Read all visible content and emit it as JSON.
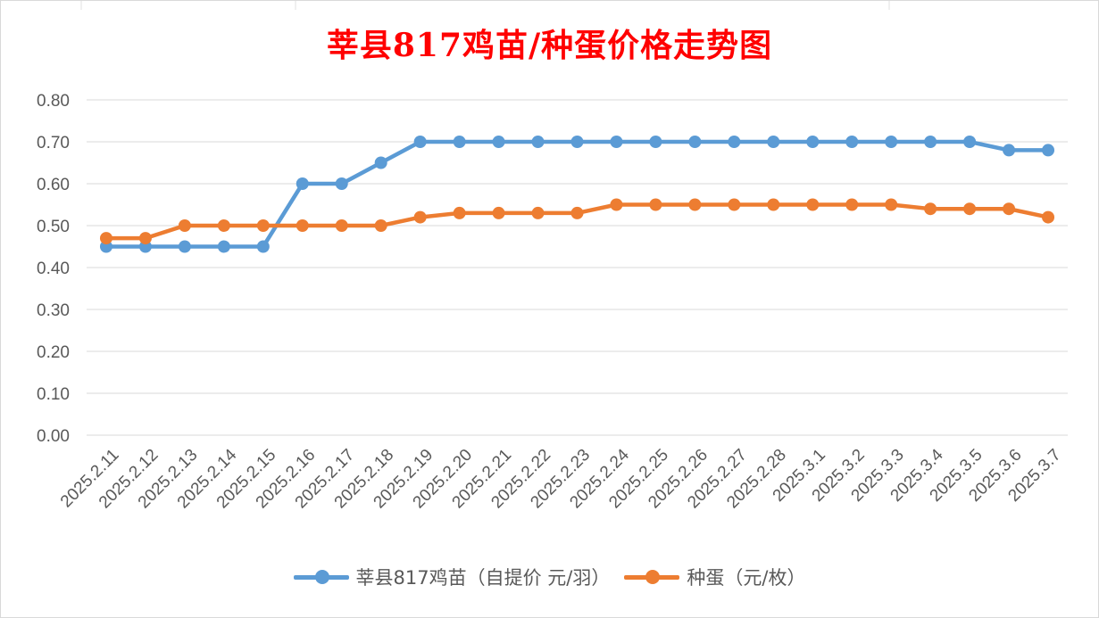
{
  "title": "莘县817鸡苗/种蛋价格走势图",
  "chart_data": {
    "type": "line",
    "title": "莘县817鸡苗/种蛋价格走势图",
    "xlabel": "",
    "ylabel": "",
    "ylim": [
      0,
      0.8
    ],
    "ytick_step": 0.1,
    "ytick_labels": [
      "0.00",
      "0.10",
      "0.20",
      "0.30",
      "0.40",
      "0.50",
      "0.60",
      "0.70",
      "0.80"
    ],
    "grid": true,
    "legend_position": "bottom",
    "categories": [
      "2025.2.11",
      "2025.2.12",
      "2025.2.13",
      "2025.2.14",
      "2025.2.15",
      "2025.2.16",
      "2025.2.17",
      "2025.2.18",
      "2025.2.19",
      "2025.2.20",
      "2025.2.21",
      "2025.2.22",
      "2025.2.23",
      "2025.2.24",
      "2025.2.25",
      "2025.2.26",
      "2025.2.27",
      "2025.2.28",
      "2025.3.1",
      "2025.3.2",
      "2025.3.3",
      "2025.3.4",
      "2025.3.5",
      "2025.3.6",
      "2025.3.7"
    ],
    "series": [
      {
        "name": "莘县817鸡苗（自提价 元/羽）",
        "color": "#5b9bd5",
        "values": [
          0.45,
          0.45,
          0.45,
          0.45,
          0.45,
          0.6,
          0.6,
          0.65,
          0.7,
          0.7,
          0.7,
          0.7,
          0.7,
          0.7,
          0.7,
          0.7,
          0.7,
          0.7,
          0.7,
          0.7,
          0.7,
          0.7,
          0.7,
          0.68,
          0.68
        ]
      },
      {
        "name": "种蛋（元/枚）",
        "color": "#ed7d31",
        "values": [
          0.47,
          0.47,
          0.5,
          0.5,
          0.5,
          0.5,
          0.5,
          0.5,
          0.52,
          0.53,
          0.53,
          0.53,
          0.53,
          0.55,
          0.55,
          0.55,
          0.55,
          0.55,
          0.55,
          0.55,
          0.55,
          0.54,
          0.54,
          0.54,
          0.52
        ]
      }
    ]
  }
}
